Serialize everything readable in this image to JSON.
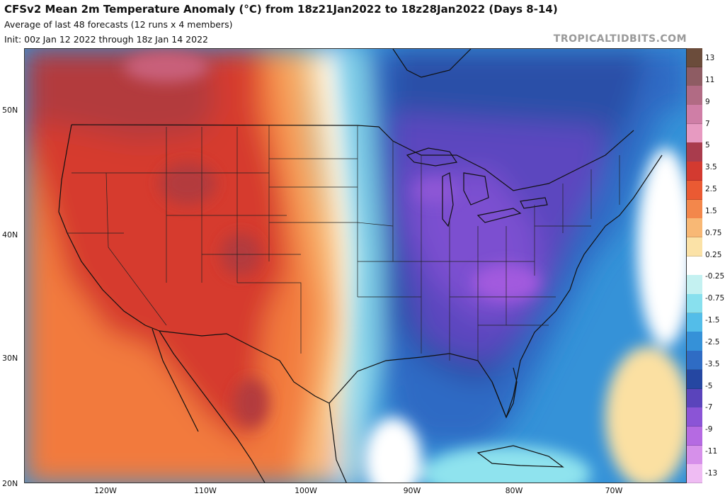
{
  "header": {
    "title": "CFSv2 Mean 2m Temperature Anomaly (°C) from 18z21Jan2022 to 18z28Jan2022 (Days 8-14)",
    "subtitle_1": "Average of last 48 forecasts (12 runs x 4 members)",
    "subtitle_2": "Init: 00z Jan 12 2022 through 18z Jan 14 2022",
    "brand": "TROPICALTIDBITS.COM"
  },
  "axes": {
    "latitude_labels": [
      "50N",
      "40N",
      "30N",
      "20N"
    ],
    "longitude_labels": [
      "120W",
      "110W",
      "100W",
      "90W",
      "80W",
      "70W"
    ]
  },
  "legend": {
    "labels": [
      "13",
      "11",
      "9",
      "7",
      "5",
      "3.5",
      "2.5",
      "1.5",
      "0.75",
      "0.25",
      "-0.25",
      "-0.75",
      "-1.5",
      "-2.5",
      "-3.5",
      "-5",
      "-7",
      "-9",
      "-11",
      "-13"
    ],
    "colors": [
      "#6b4c3b",
      "#8e5c63",
      "#b16b84",
      "#cf7ea6",
      "#e79ac1",
      "#a93c4d",
      "#d33a30",
      "#ea5a33",
      "#f3874b",
      "#f8b875",
      "#fbe2a7",
      "#ffffff",
      "#c4f1f1",
      "#88e0ee",
      "#53bde9",
      "#3591d8",
      "#2f6cc4",
      "#2547a2",
      "#5a44bb",
      "#8b54d6",
      "#b56ae2",
      "#d690ea",
      "#efbcf3"
    ]
  },
  "map": {
    "region": "Contiguous United States, southern Canada, northern Mexico",
    "colors": {
      "deep_red": "#b33a3e",
      "red": "#d63b2f",
      "orange_red": "#e9552f",
      "orange": "#f27a3e",
      "light_orange": "#f7a65e",
      "yellow": "#fbe0a2",
      "white": "#ffffff",
      "cyan": "#8fe3ee",
      "light_blue": "#54bce8",
      "blue": "#3592d8",
      "mid_blue": "#2f6bc4",
      "dark_blue": "#2a4fa8",
      "purple": "#5b47bf",
      "violet": "#7c4fd0",
      "magenta": "#a25ade"
    }
  }
}
